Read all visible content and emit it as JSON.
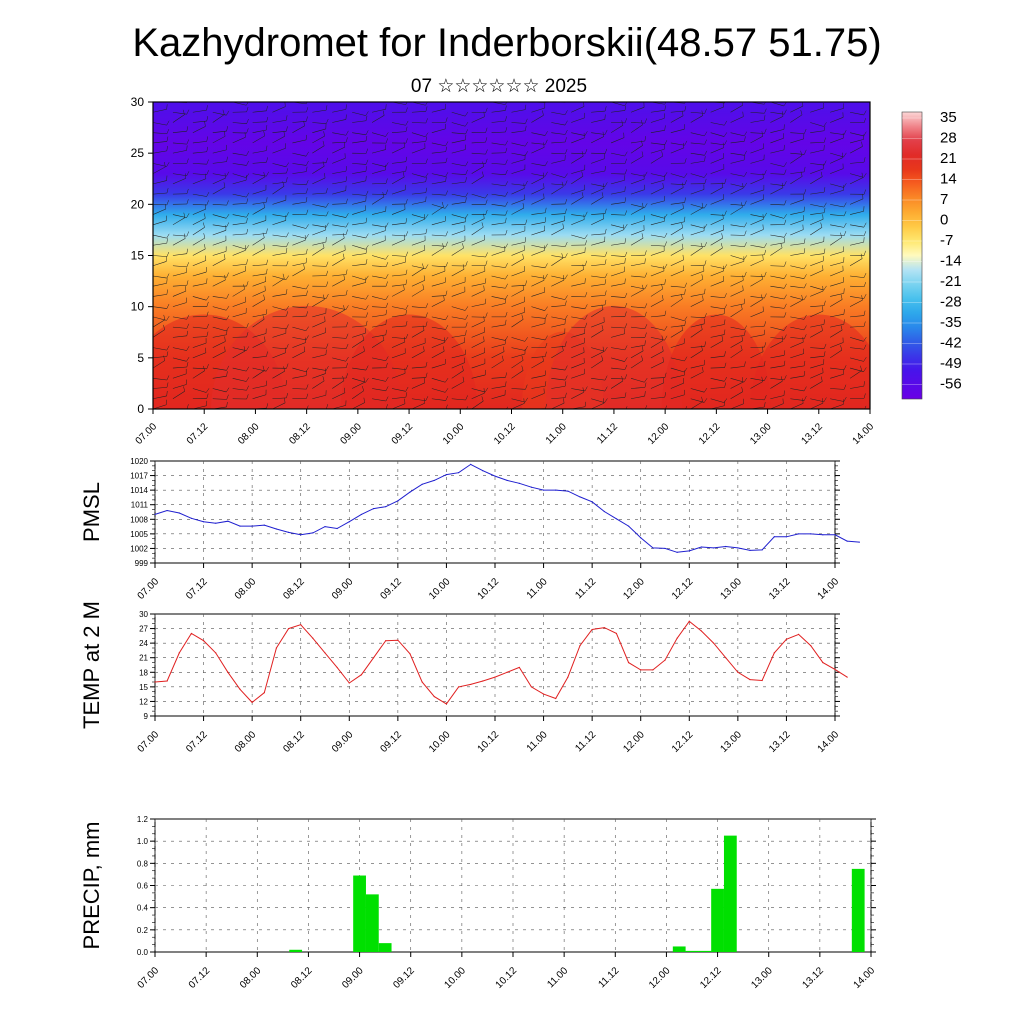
{
  "title": "Kazhydromet for Inderborskii(48.57 51.75)",
  "subtitle": "07 ☆☆☆☆☆☆ 2025",
  "time_ticks": [
    "07.00",
    "07.12",
    "08.00",
    "08.12",
    "09.00",
    "09.12",
    "10.00",
    "10.12",
    "11.00",
    "11.12",
    "12.00",
    "12.12",
    "13.00",
    "13.12",
    "14.00"
  ],
  "chart_data": [
    {
      "type": "heatmap",
      "name": "temperature-cross-section",
      "x": [
        "07.00",
        "07.12",
        "08.00",
        "08.12",
        "09.00",
        "09.12",
        "10.00",
        "10.12",
        "11.00",
        "11.12",
        "12.00",
        "12.12",
        "13.00",
        "13.12",
        "14.00"
      ],
      "ylim": [
        0,
        30
      ],
      "yticks": [
        0,
        5,
        10,
        15,
        20,
        25,
        30
      ],
      "colorbar_labels": [
        "35",
        "28",
        "21",
        "14",
        "7",
        "0",
        "-7",
        "-14",
        "-21",
        "-28",
        "-35",
        "-42",
        "-49",
        "-56"
      ],
      "colorbar_range": [
        -60,
        38
      ],
      "profile": [
        {
          "h": 0,
          "t": 22
        },
        {
          "h": 5,
          "t": 18
        },
        {
          "h": 10,
          "t": 10
        },
        {
          "h": 13,
          "t": 3
        },
        {
          "h": 15,
          "t": -5
        },
        {
          "h": 17,
          "t": -18
        },
        {
          "h": 19,
          "t": -30
        },
        {
          "h": 21,
          "t": -45
        },
        {
          "h": 23,
          "t": -55
        },
        {
          "h": 26,
          "t": -58
        },
        {
          "h": 30,
          "t": -52
        }
      ],
      "wind_barbs": true
    },
    {
      "type": "line",
      "ylabel": "PMSL",
      "ylim": [
        999,
        1020
      ],
      "yticks": [
        999,
        1002,
        1005,
        1008,
        1011,
        1014,
        1017,
        1020
      ],
      "color": "#1f1fcf",
      "values": [
        1009,
        1009.8,
        1009.3,
        1008.2,
        1007.5,
        1007.2,
        1007.6,
        1006.6,
        1006.6,
        1006.8,
        1006,
        1005.3,
        1004.8,
        1005.2,
        1006.5,
        1006.1,
        1007.5,
        1009,
        1010.2,
        1010.6,
        1011.8,
        1013.6,
        1015.2,
        1016,
        1017.2,
        1017.6,
        1019.3,
        1018,
        1016.9,
        1016,
        1015.4,
        1014.6,
        1014,
        1014,
        1013.8,
        1012.6,
        1011.6,
        1009.6,
        1008.1,
        1006.6,
        1004.2,
        1002.1,
        1002,
        1001.2,
        1001.5,
        1002.3,
        1002.1,
        1002.4,
        1002.1,
        1001.6,
        1001.7,
        1004.4,
        1004.4,
        1005,
        1005,
        1004.8,
        1004.8,
        1003.5,
        1003.3
      ],
      "x_start": 0,
      "x_step": 3
    },
    {
      "type": "line",
      "ylabel": "TEMP at 2 M",
      "ylim": [
        9,
        30
      ],
      "yticks": [
        9,
        12,
        15,
        18,
        21,
        24,
        27,
        30
      ],
      "color": "#e02020",
      "values": [
        16,
        16.2,
        22,
        26,
        24.5,
        22,
        18,
        14.5,
        11.8,
        13.8,
        23,
        27,
        27.8,
        25,
        22,
        19,
        15.8,
        17.5,
        21,
        24.5,
        24.6,
        21.8,
        16,
        13,
        11.5,
        15,
        15.5,
        16.2,
        17,
        18,
        19,
        15,
        13.5,
        12.6,
        17,
        23.5,
        26.8,
        27.2,
        26,
        20,
        18.5,
        18.5,
        20.5,
        25,
        28.5,
        26.5,
        24,
        21,
        18,
        16.5,
        16.3,
        22,
        24.8,
        25.8,
        23.5,
        20,
        18.6,
        17
      ],
      "x_start": 0,
      "x_step": 3
    },
    {
      "type": "bar",
      "ylabel": "PRECIP, mm",
      "ylim": [
        0,
        1.2
      ],
      "yticks": [
        "0.0",
        "0.2",
        "0.4",
        "0.6",
        "0.8",
        "1.0",
        "1.2"
      ],
      "color": "#00e000",
      "bar_width_hours": 3,
      "bars": [
        {
          "x": 33,
          "value": 0.02
        },
        {
          "x": 48,
          "value": 0.69
        },
        {
          "x": 51,
          "value": 0.52
        },
        {
          "x": 54,
          "value": 0.08
        },
        {
          "x": 123,
          "value": 0.05
        },
        {
          "x": 126,
          "value": 0.01
        },
        {
          "x": 129,
          "value": 0.01
        },
        {
          "x": 132,
          "value": 0.57
        },
        {
          "x": 135,
          "value": 1.05
        },
        {
          "x": 165,
          "value": 0.75
        }
      ]
    }
  ]
}
